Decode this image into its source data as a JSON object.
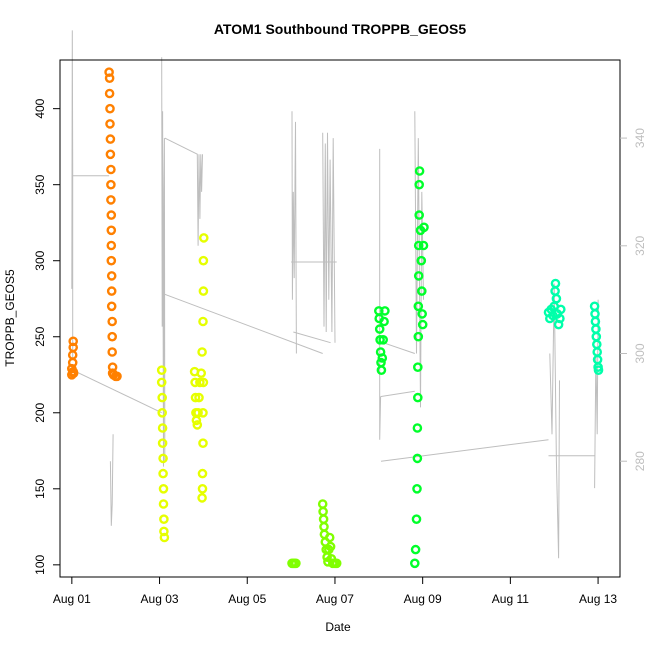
{
  "chart_data": {
    "type": "scatter",
    "title": "ATOM1 Southbound TROPPB_GEOS5",
    "xlabel": "Date",
    "ylabel": "TROPPB_GEOS5",
    "x_ticks": [
      "Aug 01",
      "Aug 03",
      "Aug 05",
      "Aug 07",
      "Aug 09",
      "Aug 11",
      "Aug 13"
    ],
    "x_tick_values": [
      0,
      2,
      4,
      6,
      8,
      10,
      12
    ],
    "xlim": [
      -0.27,
      12.5
    ],
    "ylim": [
      92,
      432
    ],
    "y_ticks": [
      100,
      150,
      200,
      250,
      300,
      350,
      400
    ],
    "y2lim": [
      258.5,
      354.5
    ],
    "y2_ticks": [
      280,
      300,
      320,
      340
    ],
    "grid": false,
    "colors": {
      "orange": "#ff8000",
      "yellow": "#e6ff00",
      "green_yellow": "#80ff00",
      "green": "#00ff2a",
      "teal": "#00ffaa",
      "grey_line": "#bebebe"
    },
    "series": [
      {
        "color": "#ff8000",
        "points": [
          [
            0.0,
            225
          ],
          [
            0.0,
            229
          ],
          [
            0.02,
            233
          ],
          [
            0.02,
            238
          ],
          [
            0.03,
            243
          ],
          [
            0.03,
            247
          ],
          [
            0.03,
            227
          ],
          [
            0.04,
            226
          ],
          [
            0.85,
            424
          ],
          [
            0.86,
            420
          ],
          [
            0.86,
            410
          ],
          [
            0.87,
            400
          ],
          [
            0.87,
            390
          ],
          [
            0.88,
            380
          ],
          [
            0.88,
            370
          ],
          [
            0.89,
            360
          ],
          [
            0.89,
            350
          ],
          [
            0.89,
            340
          ],
          [
            0.9,
            330
          ],
          [
            0.9,
            320
          ],
          [
            0.9,
            310
          ],
          [
            0.9,
            300
          ],
          [
            0.91,
            290
          ],
          [
            0.91,
            280
          ],
          [
            0.91,
            270
          ],
          [
            0.92,
            260
          ],
          [
            0.92,
            250
          ],
          [
            0.92,
            240
          ],
          [
            0.93,
            230
          ],
          [
            0.93,
            226
          ],
          [
            0.95,
            225
          ],
          [
            1.0,
            224
          ],
          [
            1.03,
            224
          ]
        ]
      },
      {
        "color": "#e6ff00",
        "points": [
          [
            2.05,
            228
          ],
          [
            2.05,
            220
          ],
          [
            2.06,
            210
          ],
          [
            2.06,
            200
          ],
          [
            2.07,
            190
          ],
          [
            2.07,
            180
          ],
          [
            2.08,
            170
          ],
          [
            2.08,
            160
          ],
          [
            2.09,
            150
          ],
          [
            2.09,
            140
          ],
          [
            2.1,
            130
          ],
          [
            2.1,
            122
          ],
          [
            2.11,
            118
          ],
          [
            2.8,
            227
          ],
          [
            2.81,
            220
          ],
          [
            2.82,
            210
          ],
          [
            2.83,
            200
          ],
          [
            2.84,
            195
          ],
          [
            2.86,
            192
          ],
          [
            2.88,
            200
          ],
          [
            2.9,
            210
          ],
          [
            2.92,
            220
          ],
          [
            2.95,
            226
          ],
          [
            2.97,
            240
          ],
          [
            2.99,
            260
          ],
          [
            3.0,
            280
          ],
          [
            3.0,
            300
          ],
          [
            3.01,
            315
          ],
          [
            3.0,
            220
          ],
          [
            2.99,
            200
          ],
          [
            2.99,
            180
          ],
          [
            2.98,
            160
          ],
          [
            2.98,
            150
          ],
          [
            2.97,
            144
          ]
        ]
      },
      {
        "color": "#80ff00",
        "points": [
          [
            5.02,
            101
          ],
          [
            5.05,
            101
          ],
          [
            5.08,
            101
          ],
          [
            5.11,
            101
          ],
          [
            5.72,
            140
          ],
          [
            5.73,
            135
          ],
          [
            5.74,
            130
          ],
          [
            5.75,
            125
          ],
          [
            5.76,
            120
          ],
          [
            5.78,
            115
          ],
          [
            5.8,
            110
          ],
          [
            5.82,
            105
          ],
          [
            5.84,
            102
          ],
          [
            5.86,
            110
          ],
          [
            5.88,
            118
          ],
          [
            5.9,
            112
          ],
          [
            5.92,
            104
          ],
          [
            5.95,
            101
          ],
          [
            6.0,
            101
          ],
          [
            6.04,
            101
          ]
        ]
      },
      {
        "color": "#00ff2a",
        "points": [
          [
            7.0,
            267
          ],
          [
            7.01,
            262
          ],
          [
            7.02,
            255
          ],
          [
            7.03,
            248
          ],
          [
            7.04,
            240
          ],
          [
            7.05,
            233
          ],
          [
            7.06,
            228
          ],
          [
            7.08,
            236
          ],
          [
            7.1,
            248
          ],
          [
            7.12,
            260
          ],
          [
            7.14,
            267
          ],
          [
            7.82,
            101
          ],
          [
            7.84,
            110
          ],
          [
            7.86,
            130
          ],
          [
            7.87,
            150
          ],
          [
            7.88,
            170
          ],
          [
            7.88,
            190
          ],
          [
            7.89,
            210
          ],
          [
            7.89,
            230
          ],
          [
            7.9,
            250
          ],
          [
            7.9,
            270
          ],
          [
            7.91,
            290
          ],
          [
            7.91,
            310
          ],
          [
            7.92,
            330
          ],
          [
            7.92,
            350
          ],
          [
            7.93,
            359
          ],
          [
            7.95,
            320
          ],
          [
            7.97,
            300
          ],
          [
            7.98,
            280
          ],
          [
            7.99,
            265
          ],
          [
            8.0,
            258
          ],
          [
            8.02,
            310
          ],
          [
            8.03,
            322
          ]
        ]
      },
      {
        "color": "#00ffaa",
        "points": [
          [
            10.87,
            266
          ],
          [
            10.9,
            262
          ],
          [
            10.93,
            268
          ],
          [
            10.97,
            264
          ],
          [
            11.0,
            270
          ],
          [
            11.02,
            280
          ],
          [
            11.03,
            285
          ],
          [
            11.05,
            275
          ],
          [
            11.07,
            265
          ],
          [
            11.1,
            258
          ],
          [
            11.13,
            262
          ],
          [
            11.15,
            268
          ],
          [
            11.92,
            270
          ],
          [
            11.93,
            265
          ],
          [
            11.94,
            260
          ],
          [
            11.95,
            255
          ],
          [
            11.96,
            250
          ],
          [
            11.97,
            245
          ],
          [
            11.98,
            240
          ],
          [
            11.99,
            235
          ],
          [
            12.0,
            230
          ],
          [
            12.01,
            228
          ]
        ]
      }
    ],
    "grey_lines": [
      [
        [
          0.0,
          312
        ],
        [
          0.01,
          360
        ],
        [
          0.02,
          335
        ],
        [
          0.02,
          299
        ]
      ],
      [
        [
          0.0,
          333
        ],
        [
          0.85,
          333
        ]
      ],
      [
        [
          0.88,
          280
        ],
        [
          0.9,
          268
        ],
        [
          0.92,
          272
        ],
        [
          0.94,
          285
        ]
      ],
      [
        [
          0.0,
          297
        ],
        [
          2.05,
          289
        ]
      ],
      [
        [
          2.05,
          355
        ],
        [
          2.06,
          305
        ],
        [
          2.07,
          345
        ],
        [
          2.09,
          279
        ],
        [
          2.1,
          330
        ],
        [
          2.11,
          340
        ],
        [
          2.12,
          280
        ]
      ],
      [
        [
          2.12,
          340
        ],
        [
          2.86,
          337
        ],
        [
          2.88,
          320
        ],
        [
          2.9,
          337
        ],
        [
          2.92,
          325
        ],
        [
          2.94,
          337
        ],
        [
          2.96,
          330
        ],
        [
          2.98,
          337
        ]
      ],
      [
        [
          2.12,
          311
        ],
        [
          5.72,
          300
        ]
      ],
      [
        [
          5.02,
          345
        ],
        [
          5.03,
          310
        ],
        [
          5.05,
          330
        ],
        [
          5.07,
          314
        ],
        [
          5.1,
          343
        ],
        [
          5.12,
          300
        ]
      ],
      [
        [
          5.0,
          317
        ],
        [
          6.04,
          317
        ]
      ],
      [
        [
          5.05,
          304
        ],
        [
          5.9,
          302
        ]
      ],
      [
        [
          5.72,
          341
        ],
        [
          5.75,
          305
        ],
        [
          5.78,
          339
        ],
        [
          5.8,
          304
        ],
        [
          5.83,
          341
        ],
        [
          5.86,
          310
        ],
        [
          5.89,
          336
        ],
        [
          5.93,
          304
        ],
        [
          5.96,
          340
        ],
        [
          6.0,
          302
        ]
      ],
      [
        [
          7.02,
          338
        ],
        [
          7.02,
          284
        ],
        [
          7.04,
          292
        ]
      ],
      [
        [
          7.04,
          292
        ],
        [
          7.82,
          293
        ]
      ],
      [
        [
          7.05,
          280
        ],
        [
          10.87,
          284
        ]
      ],
      [
        [
          7.1,
          302
        ],
        [
          7.82,
          300
        ]
      ],
      [
        [
          7.82,
          345
        ],
        [
          7.86,
          300
        ],
        [
          7.9,
          340
        ],
        [
          7.95,
          290
        ],
        [
          7.98,
          330
        ],
        [
          8.02,
          310
        ]
      ],
      [
        [
          10.87,
          281
        ],
        [
          11.92,
          281
        ]
      ],
      [
        [
          10.9,
          300
        ],
        [
          10.95,
          285
        ],
        [
          11.0,
          313
        ],
        [
          11.05,
          280
        ],
        [
          11.1,
          262
        ],
        [
          11.12,
          295
        ]
      ],
      [
        [
          11.92,
          275
        ],
        [
          11.95,
          300
        ],
        [
          11.98,
          285
        ],
        [
          12.0,
          310
        ],
        [
          12.02,
          305
        ]
      ]
    ]
  }
}
